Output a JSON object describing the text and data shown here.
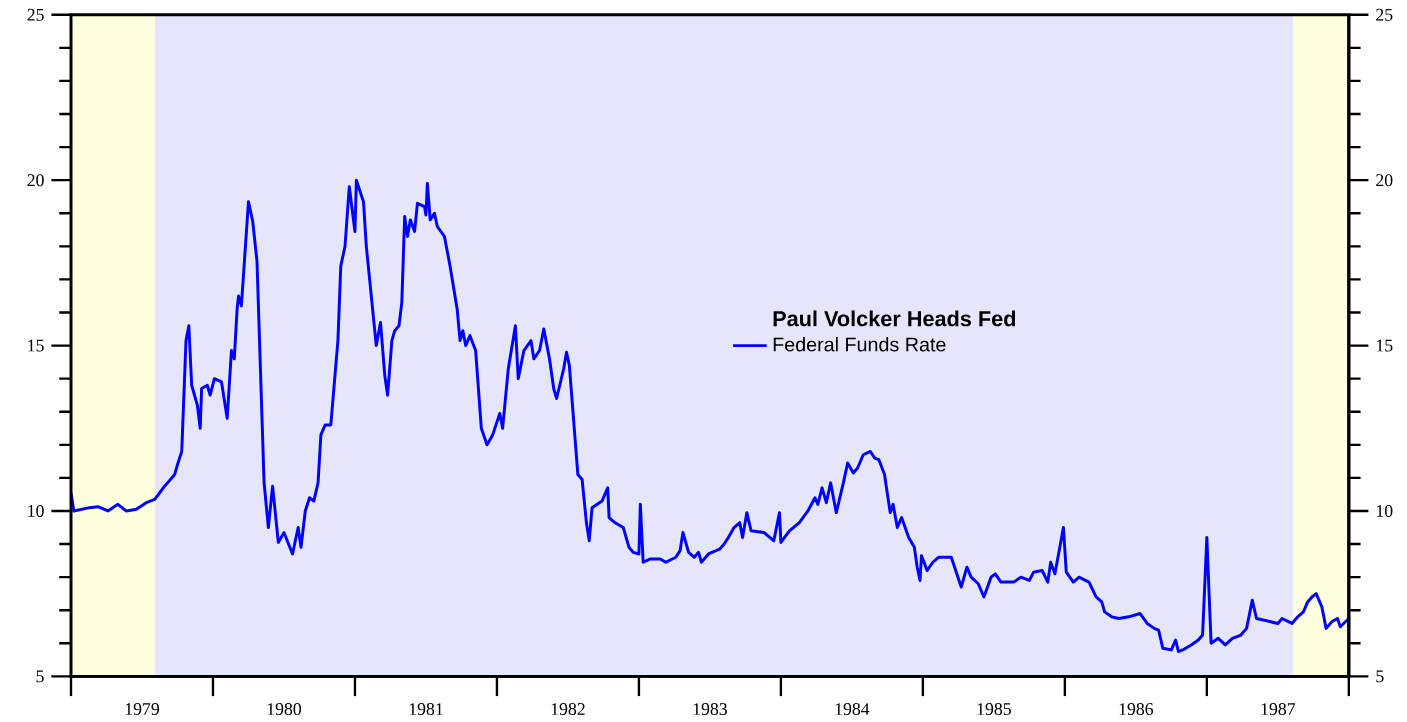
{
  "chart_data": {
    "type": "line",
    "legend_title": "Paul Volcker Heads Fed",
    "legend": "center",
    "xlim": [
      1979,
      1988
    ],
    "xticks": [
      {
        "value": 1979.5,
        "label": "1979"
      },
      {
        "value": 1980.5,
        "label": "1980"
      },
      {
        "value": 1981.5,
        "label": "1981"
      },
      {
        "value": 1982.5,
        "label": "1982"
      },
      {
        "value": 1983.5,
        "label": "1983"
      },
      {
        "value": 1984.5,
        "label": "1984"
      },
      {
        "value": 1985.5,
        "label": "1985"
      },
      {
        "value": 1986.5,
        "label": "1986"
      },
      {
        "value": 1987.5,
        "label": "1987"
      }
    ],
    "ylim": [
      5,
      25
    ],
    "yticks": [
      5,
      {
        "value": 6,
        "label": null
      },
      {
        "value": 7,
        "label": null
      },
      {
        "value": 8,
        "label": null
      },
      {
        "value": 9,
        "label": null
      },
      10,
      {
        "value": 11,
        "label": null
      },
      {
        "value": 12,
        "label": null
      },
      {
        "value": 13,
        "label": null
      },
      {
        "value": 14,
        "label": null
      },
      15,
      {
        "value": 16,
        "label": null
      },
      {
        "value": 17,
        "label": null
      },
      {
        "value": 18,
        "label": null
      },
      {
        "value": 19,
        "label": null
      },
      20,
      {
        "value": 21,
        "label": null
      },
      {
        "value": 22,
        "label": null
      },
      {
        "value": 23,
        "label": null
      },
      {
        "value": 24,
        "label": null
      },
      25
    ],
    "y2lim": [
      5,
      25
    ],
    "y2ticks": [
      5,
      {
        "value": 6,
        "label": null
      },
      {
        "value": 7,
        "label": null
      },
      {
        "value": 8,
        "label": null
      },
      {
        "value": 9,
        "label": null
      },
      10,
      {
        "value": 11,
        "label": null
      },
      {
        "value": 12,
        "label": null
      },
      {
        "value": 13,
        "label": null
      },
      {
        "value": 14,
        "label": null
      },
      15,
      {
        "value": 16,
        "label": null
      },
      {
        "value": 17,
        "label": null
      },
      {
        "value": 18,
        "label": null
      },
      {
        "value": 19,
        "label": null
      },
      20,
      {
        "value": 21,
        "label": null
      },
      {
        "value": 22,
        "label": null
      },
      {
        "value": 23,
        "label": null
      },
      {
        "value": 24,
        "label": null
      },
      25
    ],
    "bands": [
      {
        "axis": "x",
        "from": 1979,
        "to": 1979.59,
        "color": "#ffffe0"
      },
      {
        "axis": "x",
        "from": 1979.59,
        "to": 1987.61,
        "color": "#e6e6fa"
      },
      {
        "axis": "x",
        "from": 1987.61,
        "to": 1988,
        "color": "#ffffe0"
      }
    ],
    "series": [
      {
        "name": "Federal Funds Rate",
        "color": "#0000ff",
        "x": [
          1979.0,
          1979.02,
          1979.13,
          1979.19,
          1979.26,
          1979.33,
          1979.39,
          1979.46,
          1979.53,
          1979.59,
          1979.65,
          1979.68,
          1979.73,
          1979.75,
          1979.78,
          1979.81,
          1979.83,
          1979.85,
          1979.89,
          1979.91,
          1979.92,
          1979.96,
          1979.98,
          1980.01,
          1980.06,
          1980.1,
          1980.13,
          1980.15,
          1980.17,
          1980.18,
          1980.2,
          1980.25,
          1980.28,
          1980.31,
          1980.36,
          1980.39,
          1980.42,
          1980.46,
          1980.5,
          1980.56,
          1980.6,
          1980.62,
          1980.65,
          1980.68,
          1980.71,
          1980.74,
          1980.76,
          1980.79,
          1980.83,
          1980.88,
          1980.9,
          1980.93,
          1980.96,
          1981.0,
          1981.01,
          1981.06,
          1981.08,
          1981.15,
          1981.18,
          1981.21,
          1981.23,
          1981.26,
          1981.28,
          1981.31,
          1981.33,
          1981.35,
          1981.37,
          1981.39,
          1981.42,
          1981.44,
          1981.49,
          1981.5,
          1981.51,
          1981.53,
          1981.56,
          1981.58,
          1981.63,
          1981.67,
          1981.72,
          1981.74,
          1981.76,
          1981.78,
          1981.81,
          1981.85,
          1981.89,
          1981.93,
          1981.97,
          1982.02,
          1982.04,
          1982.08,
          1982.13,
          1982.15,
          1982.19,
          1982.24,
          1982.26,
          1982.3,
          1982.33,
          1982.37,
          1982.4,
          1982.42,
          1982.47,
          1982.49,
          1982.51,
          1982.57,
          1982.6,
          1982.63,
          1982.65,
          1982.67,
          1982.74,
          1982.78,
          1982.79,
          1982.83,
          1982.89,
          1982.93,
          1982.96,
          1983.0,
          1983.01,
          1983.03,
          1983.08,
          1983.15,
          1983.19,
          1983.26,
          1983.29,
          1983.31,
          1983.35,
          1983.39,
          1983.42,
          1983.44,
          1983.49,
          1983.57,
          1983.6,
          1983.63,
          1983.67,
          1983.71,
          1983.73,
          1983.76,
          1983.79,
          1983.88,
          1983.95,
          1983.99,
          1984.0,
          1984.06,
          1984.13,
          1984.19,
          1984.24,
          1984.26,
          1984.29,
          1984.32,
          1984.35,
          1984.39,
          1984.44,
          1984.47,
          1984.51,
          1984.54,
          1984.58,
          1984.63,
          1984.66,
          1984.69,
          1984.73,
          1984.74,
          1984.77,
          1984.79,
          1984.82,
          1984.85,
          1984.9,
          1984.94,
          1984.96,
          1984.98,
          1984.99,
          1985.03,
          1985.07,
          1985.11,
          1985.2,
          1985.27,
          1985.31,
          1985.34,
          1985.39,
          1985.43,
          1985.48,
          1985.51,
          1985.55,
          1985.64,
          1985.69,
          1985.75,
          1985.78,
          1985.84,
          1985.88,
          1985.9,
          1985.93,
          1985.99,
          1986.01,
          1986.06,
          1986.1,
          1986.17,
          1986.22,
          1986.26,
          1986.28,
          1986.33,
          1986.38,
          1986.45,
          1986.53,
          1986.58,
          1986.63,
          1986.66,
          1986.69,
          1986.75,
          1986.78,
          1986.8,
          1986.83,
          1986.89,
          1986.94,
          1986.97,
          1987.0,
          1987.03,
          1987.08,
          1987.13,
          1987.18,
          1987.24,
          1987.28,
          1987.32,
          1987.35,
          1987.4,
          1987.5,
          1987.53,
          1987.6,
          1987.64,
          1987.68,
          1987.71,
          1987.74,
          1987.77,
          1987.81,
          1987.84,
          1987.88,
          1987.92,
          1987.94,
          1988.0
        ],
        "values": [
          10.55,
          10.0,
          10.1,
          10.13,
          10.0,
          10.2,
          10.0,
          10.05,
          10.25,
          10.35,
          10.7,
          10.85,
          11.1,
          11.4,
          11.8,
          15.15,
          15.6,
          13.8,
          13.2,
          12.5,
          13.7,
          13.8,
          13.5,
          14.0,
          13.9,
          12.8,
          14.85,
          14.6,
          16.1,
          16.5,
          16.2,
          19.35,
          18.75,
          17.55,
          10.85,
          9.5,
          10.75,
          9.05,
          9.35,
          8.7,
          9.5,
          8.9,
          10.0,
          10.4,
          10.3,
          10.85,
          12.3,
          12.6,
          12.6,
          15.15,
          17.4,
          18.0,
          19.8,
          18.45,
          20.0,
          19.35,
          18.0,
          15.0,
          15.7,
          14.1,
          13.5,
          15.15,
          15.45,
          15.6,
          16.3,
          18.9,
          18.3,
          18.8,
          18.45,
          19.3,
          19.2,
          18.95,
          19.9,
          18.8,
          19.0,
          18.6,
          18.3,
          17.4,
          16.1,
          15.15,
          15.45,
          15.0,
          15.3,
          14.85,
          12.5,
          12.0,
          12.3,
          12.95,
          12.5,
          14.3,
          15.6,
          14.0,
          14.85,
          15.15,
          14.6,
          14.85,
          15.5,
          14.6,
          13.7,
          13.4,
          14.3,
          14.8,
          14.4,
          11.1,
          10.95,
          9.65,
          9.1,
          10.1,
          10.3,
          10.7,
          9.8,
          9.65,
          9.5,
          8.9,
          8.75,
          8.7,
          10.2,
          8.45,
          8.55,
          8.55,
          8.45,
          8.6,
          8.8,
          9.35,
          8.75,
          8.6,
          8.75,
          8.45,
          8.7,
          8.85,
          9.0,
          9.2,
          9.5,
          9.65,
          9.2,
          9.95,
          9.4,
          9.35,
          9.1,
          9.95,
          9.05,
          9.4,
          9.65,
          10.0,
          10.4,
          10.2,
          10.7,
          10.25,
          10.85,
          9.95,
          10.85,
          11.45,
          11.15,
          11.3,
          11.7,
          11.8,
          11.6,
          11.55,
          11.1,
          10.8,
          9.95,
          10.2,
          9.5,
          9.8,
          9.2,
          8.9,
          8.3,
          7.9,
          8.65,
          8.2,
          8.45,
          8.6,
          8.6,
          7.7,
          8.3,
          8.0,
          7.8,
          7.4,
          8.0,
          8.1,
          7.85,
          7.85,
          8.0,
          7.9,
          8.15,
          8.2,
          7.85,
          8.45,
          8.1,
          9.5,
          8.15,
          7.85,
          8.0,
          7.85,
          7.4,
          7.25,
          6.95,
          6.8,
          6.75,
          6.8,
          6.9,
          6.6,
          6.45,
          6.4,
          5.85,
          5.8,
          6.1,
          5.75,
          5.8,
          5.95,
          6.1,
          6.25,
          9.2,
          6.0,
          6.15,
          5.95,
          6.15,
          6.25,
          6.45,
          7.3,
          6.75,
          6.7,
          6.6,
          6.75,
          6.6,
          6.8,
          6.95,
          7.25,
          7.4,
          7.5,
          7.1,
          6.45,
          6.65,
          6.75,
          6.5,
          6.75
        ]
      }
    ]
  }
}
